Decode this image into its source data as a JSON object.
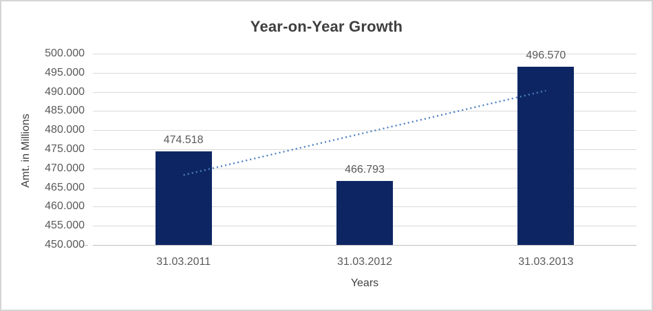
{
  "chart_data": {
    "type": "bar",
    "title": "Year-on-Year Growth",
    "xlabel": "Years",
    "ylabel": "Amt. in Millions",
    "categories": [
      "31.03.2011",
      "31.03.2012",
      "31.03.2013"
    ],
    "values": [
      474518,
      466793,
      496570
    ],
    "value_labels": [
      "474.518",
      "466.793",
      "496.570"
    ],
    "ylim": [
      450000,
      500000
    ],
    "ytick_step": 5000,
    "ytick_labels": [
      "450.000",
      "455.000",
      "460.000",
      "465.000",
      "470.000",
      "475.000",
      "480.000",
      "485.000",
      "490.000",
      "495.000",
      "500.000"
    ],
    "grid": true,
    "legend": "none",
    "trendline": {
      "style": "dotted",
      "start_value": 468268,
      "end_value": 490320
    },
    "colors": {
      "bar": "#0d2663",
      "trendline": "#4a7fc1",
      "gridline": "#d9d9d9",
      "axis_line": "#bfbfbf",
      "title_text": "#3f3f3f",
      "tick_text": "#595959",
      "data_label_text": "#595959",
      "axis_title_text": "#404040",
      "border": "#d5d5d5"
    }
  }
}
